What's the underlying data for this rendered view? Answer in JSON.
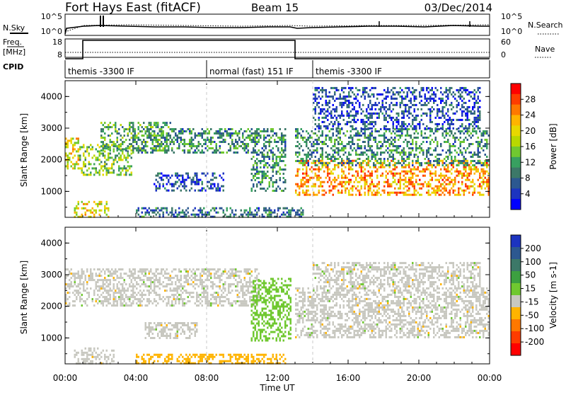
{
  "header": {
    "title": "Fort Hays East (fitACF)",
    "beam": "Beam 15",
    "date": "03/Dec/2014"
  },
  "noise_panel": {
    "left_label": "N.Sky",
    "left_ticks": [
      "10^5",
      "10^0"
    ],
    "right_ticks": [
      "10^5",
      "10^0"
    ],
    "right_label": "N.Search"
  },
  "freq_panel": {
    "left_label_1": "Freq.",
    "left_label_2": "[MHz]",
    "left_ticks": [
      "18",
      "8"
    ],
    "right_ticks": [
      "60",
      "0"
    ],
    "right_label": "Nave"
  },
  "cpid_panel": {
    "label": "CPID",
    "segments": [
      {
        "text": "themis -3300 IF",
        "start_hour": 0.0,
        "end_hour": 8.0
      },
      {
        "text": "normal (fast) 151 IF",
        "start_hour": 8.0,
        "end_hour": 14.0
      },
      {
        "text": "themis -3300 IF",
        "start_hour": 14.0,
        "end_hour": 24.0
      }
    ]
  },
  "power_panel": {
    "ylabel": "Slant Range [km]",
    "yticks": [
      "4000",
      "3000",
      "2000",
      "1000"
    ],
    "colorbar": {
      "label": "Power [dB]",
      "ticks": [
        "28",
        "24",
        "20",
        "16",
        "12",
        "8",
        "4"
      ],
      "colors": [
        "#ff0000",
        "#ff3c00",
        "#ff7800",
        "#ffb400",
        "#e8d800",
        "#b8d800",
        "#70c830",
        "#38a060",
        "#3c7868",
        "#2c5890",
        "#1c34c0",
        "#0000ff"
      ]
    }
  },
  "velocity_panel": {
    "ylabel": "Slant Range [km]",
    "yticks": [
      "4000",
      "3000",
      "2000",
      "1000"
    ],
    "colorbar": {
      "label": "Velocity [m s-1]",
      "ticks": [
        "200",
        "100",
        "50",
        "15",
        "-15",
        "-50",
        "-100",
        "-200"
      ],
      "colors": [
        "#1c34c0",
        "#2c5890",
        "#3c7868",
        "#3ca040",
        "#70c830",
        "#c8c8c0",
        "#ffb400",
        "#ff7800",
        "#ff3c00",
        "#ff0000"
      ]
    }
  },
  "xaxis": {
    "label": "Time UT",
    "ticks": [
      "00:00",
      "04:00",
      "08:00",
      "12:00",
      "16:00",
      "20:00",
      "00:00"
    ]
  },
  "chart_data": {
    "type": "heatmap",
    "title": "Fort Hays East (fitACF)",
    "x": {
      "label": "Time UT",
      "range_hours": [
        0,
        24
      ]
    },
    "y": {
      "label": "Slant Range [km]",
      "range_km": [
        180,
        4500
      ]
    },
    "frequency_mhz": [
      {
        "start_hour": 0.0,
        "end_hour": 1.0,
        "value": 8
      },
      {
        "start_hour": 1.0,
        "end_hour": 13.0,
        "value": 18
      },
      {
        "start_hour": 13.0,
        "end_hour": 24.0,
        "value": 8
      }
    ],
    "power_regions": [
      {
        "t0": 0.0,
        "t1": 0.8,
        "r0": 1700,
        "r1": 2700,
        "db": 18
      },
      {
        "t0": 0.8,
        "t1": 3.8,
        "r0": 1500,
        "r1": 2500,
        "db": 14
      },
      {
        "t0": 2.0,
        "t1": 6.0,
        "r0": 2300,
        "r1": 3200,
        "db": 12
      },
      {
        "t0": 3.8,
        "t1": 11.0,
        "r0": 2200,
        "r1": 3000,
        "db": 10
      },
      {
        "t0": 5.0,
        "t1": 9.0,
        "r0": 1000,
        "r1": 1600,
        "db": 6
      },
      {
        "t0": 0.5,
        "t1": 2.5,
        "r0": 200,
        "r1": 700,
        "db": 18
      },
      {
        "t0": 4.0,
        "t1": 13.5,
        "r0": 180,
        "r1": 500,
        "db": 8
      },
      {
        "t0": 10.5,
        "t1": 12.5,
        "r0": 1000,
        "r1": 3000,
        "db": 10
      },
      {
        "t0": 13.0,
        "t1": 24.0,
        "r0": 900,
        "r1": 2000,
        "db": 22
      },
      {
        "t0": 13.0,
        "t1": 24.0,
        "r0": 1800,
        "r1": 3000,
        "db": 10
      },
      {
        "t0": 14.0,
        "t1": 23.5,
        "r0": 3000,
        "r1": 4300,
        "db": 6
      }
    ],
    "velocity_regions": [
      {
        "t0": 0.0,
        "t1": 11.0,
        "r0": 2000,
        "r1": 3200,
        "v": 0
      },
      {
        "t0": 4.5,
        "t1": 7.5,
        "r0": 1000,
        "r1": 1500,
        "v": 0
      },
      {
        "t0": 0.5,
        "t1": 2.8,
        "r0": 200,
        "r1": 700,
        "v": 0
      },
      {
        "t0": 4.0,
        "t1": 12.5,
        "r0": 180,
        "r1": 500,
        "v": -40
      },
      {
        "t0": 10.5,
        "t1": 12.8,
        "r0": 900,
        "r1": 2900,
        "v": 30
      },
      {
        "t0": 13.0,
        "t1": 24.0,
        "r0": 1000,
        "r1": 2600,
        "v": 0
      },
      {
        "t0": 14.0,
        "t1": 23.5,
        "r0": 2600,
        "r1": 3400,
        "v": 0
      }
    ]
  }
}
